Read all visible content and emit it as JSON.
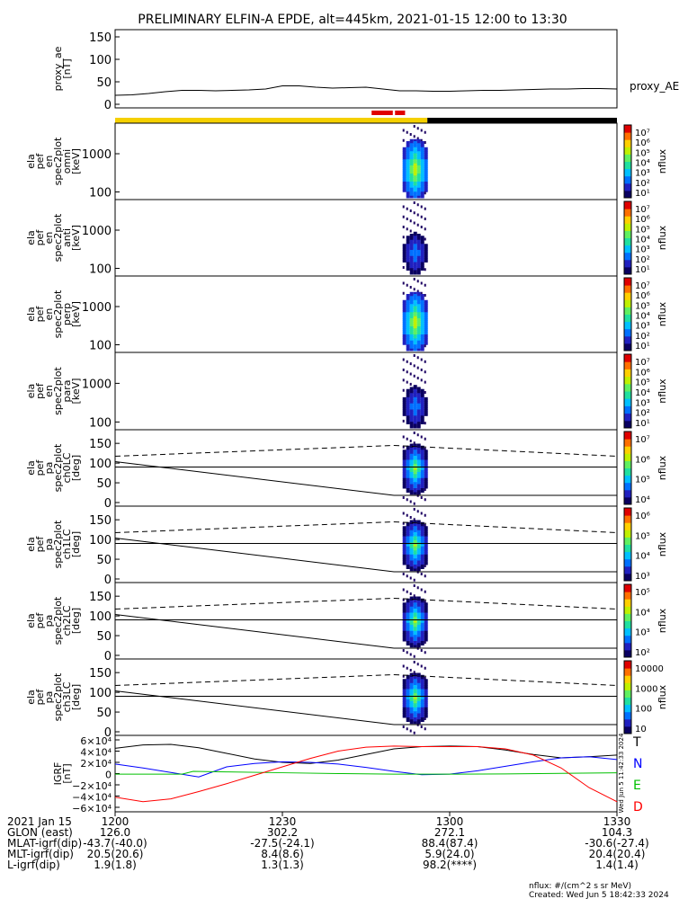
{
  "title": "PRELIMINARY ELFIN-A EPDE, alt=445km, 2021-01-15 12:00 to 13:30",
  "chart_data": [
    {
      "type": "line",
      "id": "proxy_ae",
      "ylabel_lines": [
        "proxy_ae",
        "[nT]"
      ],
      "yticks": [
        "150",
        "100",
        "50",
        "0"
      ],
      "ylim": [
        0,
        150
      ],
      "xlim": [
        0,
        90
      ],
      "legend": "proxy_AE",
      "series": [
        {
          "name": "proxy_AE",
          "x": [
            0,
            3,
            6,
            9,
            12,
            15,
            18,
            21,
            24,
            27,
            30,
            33,
            36,
            39,
            42,
            45,
            48,
            51,
            54,
            57,
            60,
            63,
            66,
            69,
            72,
            75,
            78,
            81,
            84,
            87,
            90
          ],
          "values": [
            20,
            21,
            24,
            28,
            31,
            31,
            30,
            31,
            32,
            34,
            41,
            41,
            38,
            36,
            37,
            38,
            34,
            30,
            30,
            29,
            29,
            30,
            31,
            31,
            32,
            33,
            34,
            34,
            35,
            35,
            34
          ]
        }
      ]
    },
    {
      "type": "heatmap",
      "id": "omni",
      "ylabel_lines": [
        "ela",
        "pef",
        "en",
        "spec2plot",
        "omni",
        "[keV]"
      ],
      "yticks": [
        "1000",
        "100"
      ],
      "colorbar_label": "nflux",
      "colorbar_ticks": [
        "10⁷",
        "10⁶",
        "10⁵",
        "10⁴",
        "10³",
        "10²",
        "10¹"
      ]
    },
    {
      "type": "heatmap",
      "id": "anti",
      "ylabel_lines": [
        "ela",
        "pef",
        "en",
        "spec2plot",
        "anti",
        "[keV]"
      ],
      "yticks": [
        "1000",
        "100"
      ],
      "colorbar_label": "nflux",
      "colorbar_ticks": [
        "10⁷",
        "10⁶",
        "10⁵",
        "10⁴",
        "10³",
        "10²",
        "10¹"
      ]
    },
    {
      "type": "heatmap",
      "id": "perp",
      "ylabel_lines": [
        "ela",
        "pef",
        "en",
        "spec2plot",
        "perp",
        "[keV]"
      ],
      "yticks": [
        "1000",
        "100"
      ],
      "colorbar_label": "nflux",
      "colorbar_ticks": [
        "10⁷",
        "10⁶",
        "10⁵",
        "10⁴",
        "10³",
        "10²",
        "10¹"
      ]
    },
    {
      "type": "heatmap",
      "id": "para",
      "ylabel_lines": [
        "ela",
        "pef",
        "en",
        "spec2plot",
        "para",
        "[keV]"
      ],
      "yticks": [
        "1000",
        "100"
      ],
      "colorbar_label": "nflux",
      "colorbar_ticks": [
        "10⁷",
        "10⁶",
        "10⁵",
        "10⁴",
        "10³",
        "10²",
        "10¹"
      ]
    },
    {
      "type": "heatmap",
      "id": "ch0LC",
      "ylabel_lines": [
        "ela",
        "pef",
        "pa",
        "spec2plot",
        "ch0LC",
        "[deg]"
      ],
      "yticks": [
        "150",
        "100",
        "50",
        "0"
      ],
      "ylim": [
        0,
        180
      ],
      "colorbar_label": "nflux",
      "colorbar_ticks": [
        "10⁷",
        "10⁶",
        "10⁵",
        "10⁴"
      ]
    },
    {
      "type": "heatmap",
      "id": "ch1LC",
      "ylabel_lines": [
        "ela",
        "pef",
        "pa",
        "spec2plot",
        "ch1LC",
        "[deg]"
      ],
      "yticks": [
        "150",
        "100",
        "50",
        "0"
      ],
      "ylim": [
        0,
        180
      ],
      "colorbar_label": "nflux",
      "colorbar_ticks": [
        "10⁶",
        "10⁵",
        "10⁴",
        "10³"
      ]
    },
    {
      "type": "heatmap",
      "id": "ch2LC",
      "ylabel_lines": [
        "ela",
        "pef",
        "pa",
        "spec2plot",
        "ch2LC",
        "[deg]"
      ],
      "yticks": [
        "150",
        "100",
        "50",
        "0"
      ],
      "ylim": [
        0,
        180
      ],
      "colorbar_label": "nflux",
      "colorbar_ticks": [
        "10⁵",
        "10⁴",
        "10³",
        "10²"
      ]
    },
    {
      "type": "heatmap",
      "id": "ch3LC",
      "ylabel_lines": [
        "ela",
        "pef",
        "pa",
        "spec2plot",
        "ch3LC",
        "[deg]"
      ],
      "yticks": [
        "150",
        "100",
        "50",
        "0"
      ],
      "ylim": [
        0,
        180
      ],
      "colorbar_label": "nflux",
      "colorbar_ticks": [
        "10000",
        "1000",
        "100",
        "10"
      ]
    },
    {
      "type": "line",
      "id": "igrf",
      "ylabel_lines": [
        "IGRF",
        "[nT]"
      ],
      "yticks": [
        "6×10⁴",
        "4×10⁴",
        "2×10⁴",
        "0",
        "−2×10⁴",
        "−4×10⁴",
        "−6×10⁴"
      ],
      "ylim": [
        -60000,
        60000
      ],
      "xlim": [
        0,
        90
      ],
      "legend_labels": [
        "T",
        "N",
        "E",
        "D"
      ],
      "series": [
        {
          "name": "T",
          "color": "#000000",
          "x": [
            0,
            5,
            10,
            15,
            20,
            25,
            30,
            35,
            40,
            45,
            50,
            55,
            60,
            65,
            70,
            75,
            80,
            85,
            90
          ],
          "values": [
            45000,
            51000,
            52000,
            46000,
            36000,
            26000,
            20000,
            18000,
            24000,
            34000,
            44000,
            48000,
            49000,
            48000,
            42000,
            34000,
            28000,
            30000,
            33000
          ]
        },
        {
          "name": "N",
          "color": "#0000ff",
          "x": [
            0,
            5,
            10,
            15,
            20,
            25,
            30,
            35,
            40,
            45,
            50,
            55,
            60,
            65,
            70,
            75,
            80,
            85,
            90
          ],
          "values": [
            17000,
            10000,
            2000,
            -6000,
            12000,
            18000,
            21000,
            20000,
            17000,
            11000,
            4000,
            -2000,
            -1000,
            5000,
            13000,
            21000,
            28000,
            30000,
            25000
          ]
        },
        {
          "name": "E",
          "color": "#00c000",
          "x": [
            0,
            5,
            10,
            12,
            14,
            20,
            30,
            40,
            50,
            60,
            70,
            80,
            90
          ],
          "values": [
            -1000,
            -1000,
            -1000,
            -1000,
            4000,
            3000,
            1500,
            0,
            -1000,
            -1000,
            -500,
            500,
            1500
          ]
        },
        {
          "name": "D",
          "color": "#ff0000",
          "x": [
            0,
            5,
            10,
            15,
            20,
            25,
            30,
            35,
            40,
            45,
            50,
            55,
            60,
            65,
            70,
            75,
            80,
            85,
            90
          ],
          "values": [
            -42000,
            -50000,
            -45000,
            -32000,
            -18000,
            -3000,
            12000,
            27000,
            40000,
            47000,
            49000,
            48000,
            48000,
            48000,
            44000,
            33000,
            10000,
            -25000,
            -50000
          ]
        }
      ]
    }
  ],
  "x_axis": {
    "row_labels": [
      "2021 Jan 15",
      "GLON (east)",
      "MLAT-igrf(dip)",
      "MLT-igrf(dip)",
      "L-igrf(dip)"
    ],
    "columns": [
      {
        "x": 0,
        "values": [
          "1200",
          "126.0",
          "-43.7(-40.0)",
          "20.5(20.6)",
          "1.9(1.8)"
        ]
      },
      {
        "x": 30,
        "values": [
          "1230",
          "302.2",
          "-27.5(-24.1)",
          "8.4(8.6)",
          "1.3(1.3)"
        ]
      },
      {
        "x": 60,
        "values": [
          "1300",
          "272.1",
          "88.4(87.4)",
          "5.9(24.0)",
          "98.2(****)"
        ]
      },
      {
        "x": 90,
        "values": [
          "1330",
          "104.3",
          "-30.6(-27.4)",
          "20.4(20.4)",
          "1.4(1.4)"
        ]
      }
    ]
  },
  "side_stamp": "Wed Jun  5 11:42:33 2024",
  "footer": {
    "units": "nflux: #/(cm^2 s sr MeV)",
    "created": "Created: Wed Jun  5 18:42:33 2024"
  }
}
